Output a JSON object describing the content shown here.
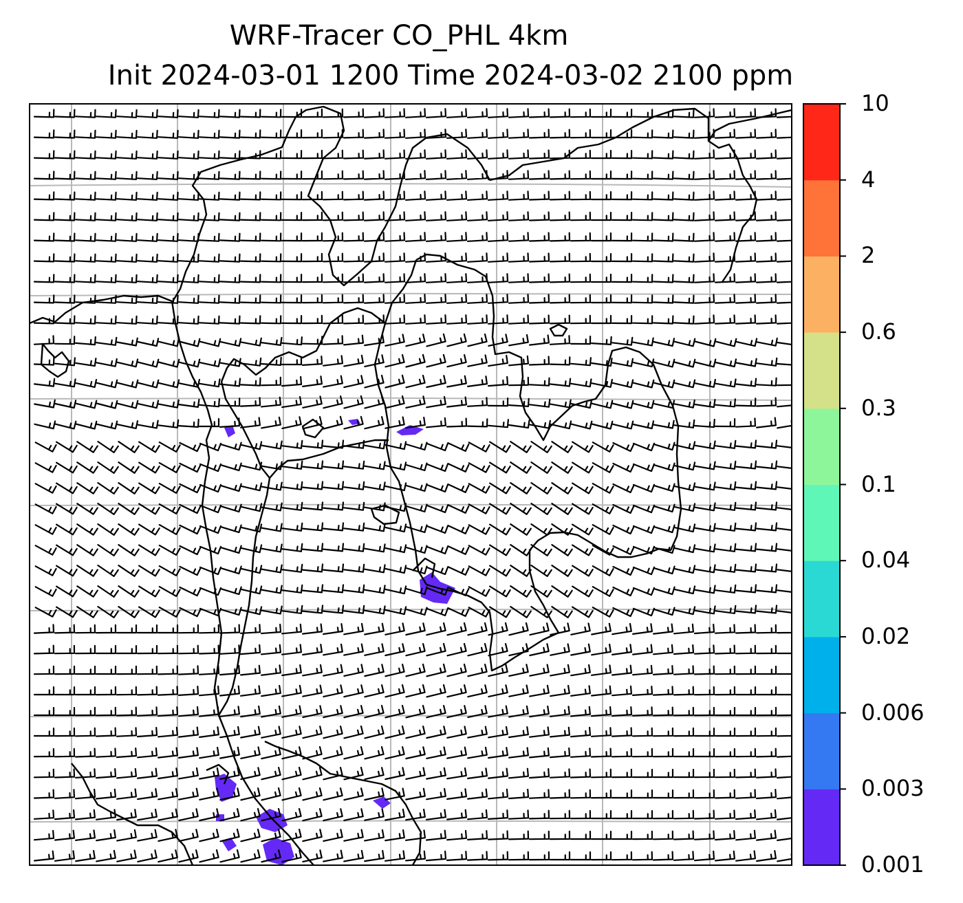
{
  "title_line1": "WRF-Tracer CO_PHL 4km",
  "title_line2": "Init 2024-03-01 1200 Time 2024-03-02 2100 ppm",
  "colorbar": {
    "ticks": [
      "0.001",
      "0.003",
      "0.006",
      "0.02",
      "0.04",
      "0.1",
      "0.3",
      "0.6",
      "2",
      "4",
      "10"
    ],
    "colors": [
      "#6429f5",
      "#3479f2",
      "#00b0ea",
      "#2ad9d3",
      "#5ff7b8",
      "#8ef69a",
      "#d5e188",
      "#fcb061",
      "#ff7238",
      "#ff2718"
    ]
  },
  "map": {
    "style": {
      "frame": "#000000",
      "grid": "#b8b8b8",
      "coast": "#000000",
      "barb": "#000000",
      "tracer": "#6429f5"
    },
    "grid_lines": {
      "columns": 7,
      "rows": 7
    }
  }
}
